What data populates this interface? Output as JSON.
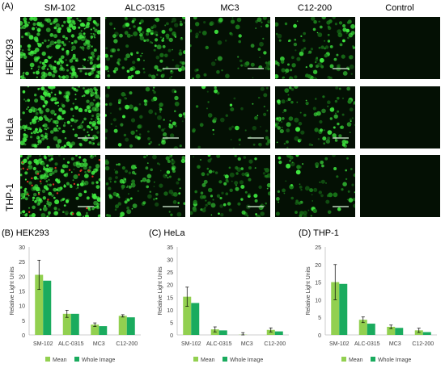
{
  "panel_a": {
    "label": "(A)",
    "columns": [
      "SM-102",
      "ALC-0315",
      "MC3",
      "C12-200",
      "Control"
    ],
    "rows": [
      "HEK293",
      "HeLa",
      "THP-1"
    ],
    "intensity": [
      [
        1.0,
        0.55,
        0.25,
        0.45,
        0.0
      ],
      [
        0.95,
        0.35,
        0.2,
        0.4,
        0.0
      ],
      [
        0.9,
        0.45,
        0.4,
        0.3,
        0.0
      ]
    ],
    "colors": {
      "cell_bright": "#3fe83f",
      "cell_dim": "#1a7a1a",
      "background": "#041004",
      "dead_cell": "#d03020"
    }
  },
  "chart_data": [
    {
      "type": "bar",
      "panel": "(B) HEK293",
      "categories": [
        "SM-102",
        "ALC-0315",
        "MC3",
        "C12-200"
      ],
      "series": [
        {
          "name": "Mean",
          "values": [
            20.5,
            7.2,
            3.5,
            6.5
          ],
          "error": [
            5.0,
            1.2,
            0.6,
            0.4
          ]
        },
        {
          "name": "Whole Image",
          "values": [
            18.5,
            7.2,
            3.0,
            6.0
          ]
        }
      ],
      "ylabel": "Relative Light Units",
      "ylim": [
        0,
        30
      ],
      "yticks": [
        0,
        5,
        10,
        15,
        20,
        25,
        30
      ]
    },
    {
      "type": "bar",
      "panel": "(C) HeLa",
      "categories": [
        "SM-102",
        "ALC-0315",
        "MC3",
        "C12-200"
      ],
      "series": [
        {
          "name": "Mean",
          "values": [
            15.2,
            2.2,
            0.1,
            2.0
          ],
          "error": [
            3.8,
            1.0,
            0.8,
            0.8
          ]
        },
        {
          "name": "Whole Image",
          "values": [
            12.7,
            1.8,
            0.0,
            1.4
          ]
        }
      ],
      "ylabel": "Relative Light Units",
      "ylim": [
        0,
        35
      ],
      "yticks": [
        0,
        5,
        10,
        15,
        20,
        25,
        30,
        35
      ]
    },
    {
      "type": "bar",
      "panel": "(D) THP-1",
      "categories": [
        "SM-102",
        "ALC-0315",
        "MC3",
        "C12-200"
      ],
      "series": [
        {
          "name": "Mean",
          "values": [
            15.0,
            4.3,
            2.3,
            1.3
          ],
          "error": [
            5.0,
            0.8,
            0.5,
            0.6
          ]
        },
        {
          "name": "Whole Image",
          "values": [
            14.5,
            3.2,
            2.0,
            0.8
          ]
        }
      ],
      "ylabel": "Relative Light Units",
      "ylim": [
        0,
        25
      ],
      "yticks": [
        0,
        5,
        10,
        15,
        20,
        25
      ]
    }
  ],
  "colors": {
    "mean": "#92d050",
    "whole_image": "#1aab5e",
    "axis": "#bfbfbf",
    "text": "#404040"
  }
}
